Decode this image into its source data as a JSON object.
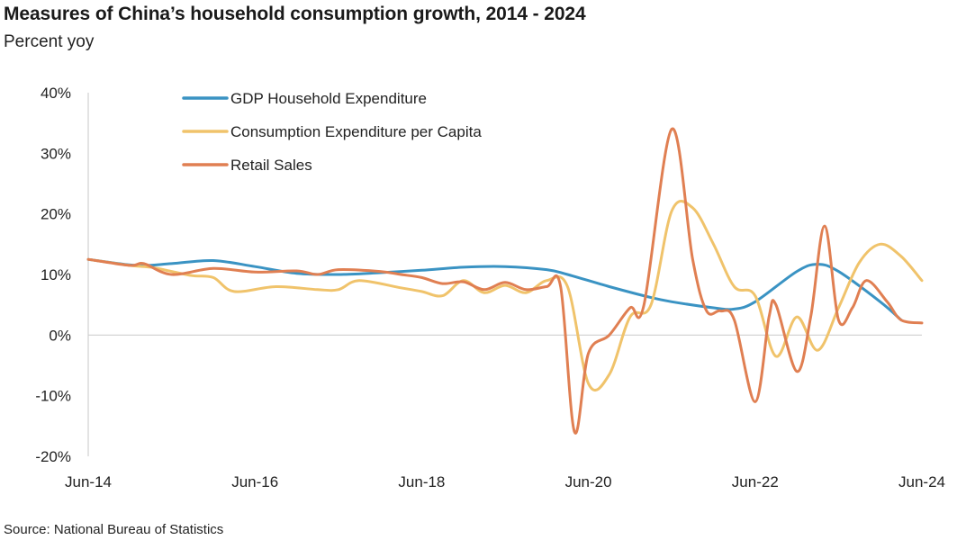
{
  "title": "Measures of China’s household consumption growth, 2014 - 2024",
  "subtitle": "Percent yoy",
  "source": "Source: National Bureau of Statistics",
  "chart_data": {
    "type": "line",
    "title": "Measures of China’s household consumption growth, 2014 - 2024",
    "subtitle": "Percent yoy",
    "xlabel": "",
    "ylabel": "",
    "x_unit": "months since Jun-14",
    "xlim": [
      "2014-06",
      "2024-06"
    ],
    "ylim": [
      -20,
      40
    ],
    "y_ticks": [
      "-20%",
      "-10%",
      "0%",
      "10%",
      "20%",
      "30%",
      "40%"
    ],
    "x_ticks": [
      "Jun-14",
      "Jun-16",
      "Jun-18",
      "Jun-20",
      "Jun-22",
      "Jun-24"
    ],
    "grid": false,
    "legend_position": "top-left",
    "series": [
      {
        "name": "GDP Household Expenditure",
        "color": "#3a93c3",
        "points": [
          [
            "2014-06",
            12.5
          ],
          [
            "2015-01",
            11.5
          ],
          [
            "2015-06",
            11.8
          ],
          [
            "2015-12",
            12.3
          ],
          [
            "2016-06",
            11.3
          ],
          [
            "2016-12",
            10.2
          ],
          [
            "2017-06",
            10.0
          ],
          [
            "2017-12",
            10.3
          ],
          [
            "2018-06",
            10.7
          ],
          [
            "2018-12",
            11.2
          ],
          [
            "2019-06",
            11.3
          ],
          [
            "2019-12",
            10.8
          ],
          [
            "2020-03",
            10.0
          ],
          [
            "2020-09",
            8.0
          ],
          [
            "2021-03",
            6.2
          ],
          [
            "2021-06",
            5.5
          ],
          [
            "2021-12",
            4.5
          ],
          [
            "2022-03",
            4.3
          ],
          [
            "2022-06",
            5.5
          ],
          [
            "2022-12",
            10.5
          ],
          [
            "2023-03",
            11.7
          ],
          [
            "2023-06",
            10.5
          ],
          [
            "2023-12",
            5.5
          ],
          [
            "2024-03",
            2.5
          ]
        ]
      },
      {
        "name": "Consumption Expenditure per Capita",
        "color": "#f0c36b",
        "points": [
          [
            "2014-06",
            12.5
          ],
          [
            "2014-12",
            11.5
          ],
          [
            "2015-03",
            11.2
          ],
          [
            "2015-06",
            10.5
          ],
          [
            "2015-09",
            9.8
          ],
          [
            "2015-12",
            9.5
          ],
          [
            "2016-03",
            7.2
          ],
          [
            "2016-09",
            8.0
          ],
          [
            "2017-03",
            7.5
          ],
          [
            "2017-06",
            7.5
          ],
          [
            "2017-09",
            9.0
          ],
          [
            "2018-03",
            7.8
          ],
          [
            "2018-06",
            7.2
          ],
          [
            "2018-09",
            6.5
          ],
          [
            "2018-12",
            9.0
          ],
          [
            "2019-03",
            7.0
          ],
          [
            "2019-06",
            8.2
          ],
          [
            "2019-09",
            7.0
          ],
          [
            "2019-12",
            9.0
          ],
          [
            "2020-03",
            8.0
          ],
          [
            "2020-06",
            -8.0
          ],
          [
            "2020-09",
            -6.5
          ],
          [
            "2020-12",
            3.0
          ],
          [
            "2021-03",
            5.0
          ],
          [
            "2021-06",
            20.5
          ],
          [
            "2021-09",
            21.0
          ],
          [
            "2021-12",
            15.0
          ],
          [
            "2022-03",
            8.0
          ],
          [
            "2022-06",
            6.5
          ],
          [
            "2022-09",
            -3.5
          ],
          [
            "2022-12",
            3.0
          ],
          [
            "2023-03",
            -2.5
          ],
          [
            "2023-06",
            4.5
          ],
          [
            "2023-09",
            12.0
          ],
          [
            "2023-12",
            15.0
          ],
          [
            "2024-03",
            13.0
          ],
          [
            "2024-06",
            9.0
          ]
        ]
      },
      {
        "name": "Retail Sales",
        "color": "#e07f52",
        "points": [
          [
            "2014-06",
            12.5
          ],
          [
            "2014-12",
            11.5
          ],
          [
            "2015-02",
            11.8
          ],
          [
            "2015-06",
            10.0
          ],
          [
            "2015-12",
            11.0
          ],
          [
            "2016-06",
            10.4
          ],
          [
            "2016-12",
            10.6
          ],
          [
            "2017-03",
            10.0
          ],
          [
            "2017-06",
            10.8
          ],
          [
            "2017-12",
            10.5
          ],
          [
            "2018-03",
            10.0
          ],
          [
            "2018-06",
            9.5
          ],
          [
            "2018-09",
            8.5
          ],
          [
            "2018-12",
            8.8
          ],
          [
            "2019-03",
            7.5
          ],
          [
            "2019-06",
            8.7
          ],
          [
            "2019-09",
            7.5
          ],
          [
            "2019-12",
            8.0
          ],
          [
            "2020-02",
            8.0
          ],
          [
            "2020-04",
            -16.0
          ],
          [
            "2020-06",
            -3.0
          ],
          [
            "2020-09",
            0.0
          ],
          [
            "2020-12",
            4.5
          ],
          [
            "2021-02",
            5.0
          ],
          [
            "2021-06",
            34.0
          ],
          [
            "2021-09",
            12.5
          ],
          [
            "2021-11",
            4.0
          ],
          [
            "2022-01",
            4.0
          ],
          [
            "2022-03",
            2.5
          ],
          [
            "2022-06",
            -11.0
          ],
          [
            "2022-08",
            3.0
          ],
          [
            "2022-09",
            5.0
          ],
          [
            "2022-12",
            -6.0
          ],
          [
            "2023-02",
            3.0
          ],
          [
            "2023-04",
            18.0
          ],
          [
            "2023-06",
            2.5
          ],
          [
            "2023-08",
            4.5
          ],
          [
            "2023-10",
            9.0
          ],
          [
            "2024-01",
            5.5
          ],
          [
            "2024-03",
            2.5
          ],
          [
            "2024-06",
            2.0
          ]
        ]
      }
    ]
  }
}
